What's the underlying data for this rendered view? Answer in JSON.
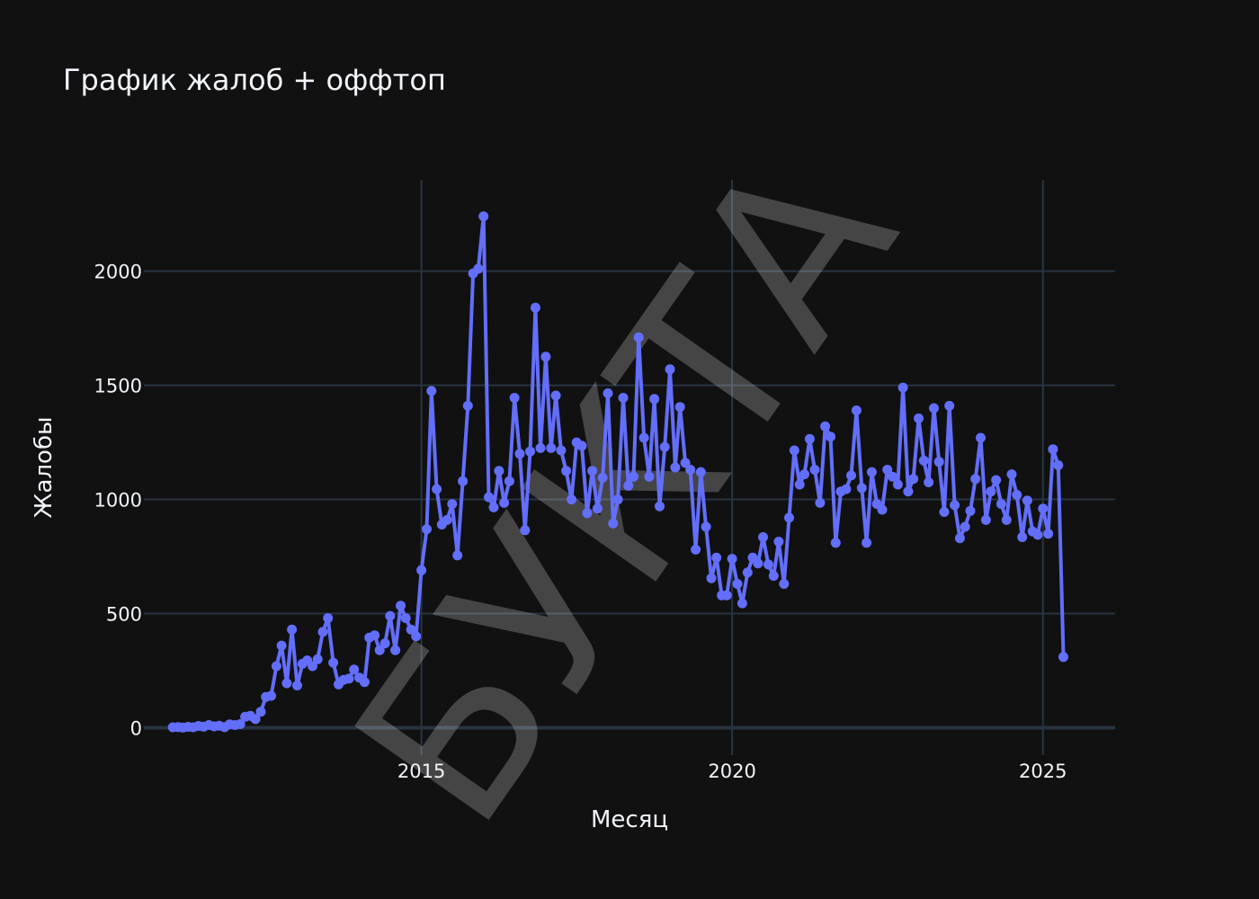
{
  "chart_data": {
    "type": "line",
    "title": "График жалоб + оффтоп",
    "xlabel": "Месяц",
    "ylabel": "Жалобы",
    "watermark": "БУКТА",
    "line_color": "#636efa",
    "background": "#111111",
    "grid": true,
    "xlim": [
      "2010-07-15",
      "2026-03-01"
    ],
    "ylim": [
      -120,
      2400
    ],
    "x_ticks": [
      "2015",
      "2020",
      "2025"
    ],
    "y_ticks": [
      "0",
      "500",
      "1000",
      "1500",
      "2000"
    ],
    "series": [
      {
        "x": [
          "2011-01",
          "2011-02",
          "2011-03",
          "2011-04",
          "2011-05",
          "2011-06",
          "2011-07",
          "2011-08",
          "2011-09",
          "2011-10",
          "2011-11",
          "2011-12",
          "2012-01",
          "2012-02",
          "2012-03",
          "2012-04",
          "2012-05",
          "2012-06",
          "2012-07",
          "2012-08",
          "2012-09",
          "2012-10",
          "2012-11",
          "2012-12",
          "2013-01",
          "2013-02",
          "2013-03",
          "2013-04",
          "2013-05",
          "2013-06",
          "2013-07",
          "2013-08",
          "2013-09",
          "2013-10",
          "2013-11",
          "2013-12",
          "2014-01",
          "2014-02",
          "2014-03",
          "2014-04",
          "2014-05",
          "2014-06",
          "2014-07",
          "2014-08",
          "2014-09",
          "2014-10",
          "2014-11",
          "2014-12",
          "2015-01",
          "2015-02",
          "2015-03",
          "2015-04",
          "2015-05",
          "2015-06",
          "2015-07",
          "2015-08",
          "2015-09",
          "2015-10",
          "2015-11",
          "2015-12",
          "2016-01",
          "2016-02",
          "2016-03",
          "2016-04",
          "2016-05",
          "2016-06",
          "2016-07",
          "2016-08",
          "2016-09",
          "2016-10",
          "2016-11",
          "2016-12",
          "2017-01",
          "2017-02",
          "2017-03",
          "2017-04",
          "2017-05",
          "2017-06",
          "2017-07",
          "2017-08",
          "2017-09",
          "2017-10",
          "2017-11",
          "2017-12",
          "2018-01",
          "2018-02",
          "2018-03",
          "2018-04",
          "2018-05",
          "2018-06",
          "2018-07",
          "2018-08",
          "2018-09",
          "2018-10",
          "2018-11",
          "2018-12",
          "2019-01",
          "2019-02",
          "2019-03",
          "2019-04",
          "2019-05",
          "2019-06",
          "2019-07",
          "2019-08",
          "2019-09",
          "2019-10",
          "2019-11",
          "2019-12",
          "2020-01",
          "2020-02",
          "2020-03",
          "2020-04",
          "2020-05",
          "2020-06",
          "2020-07",
          "2020-08",
          "2020-09",
          "2020-10",
          "2020-11",
          "2020-12",
          "2021-01",
          "2021-02",
          "2021-03",
          "2021-04",
          "2021-05",
          "2021-06",
          "2021-07",
          "2021-08",
          "2021-09",
          "2021-10",
          "2021-11",
          "2021-12",
          "2022-01",
          "2022-02",
          "2022-03",
          "2022-04",
          "2022-05",
          "2022-06",
          "2022-07",
          "2022-08",
          "2022-09",
          "2022-10",
          "2022-11",
          "2022-12",
          "2023-01",
          "2023-02",
          "2023-03",
          "2023-04",
          "2023-05",
          "2023-06",
          "2023-07",
          "2023-08",
          "2023-09",
          "2023-10",
          "2023-11",
          "2023-12",
          "2024-01",
          "2024-02",
          "2024-03",
          "2024-04",
          "2024-05",
          "2024-06",
          "2024-07",
          "2024-08",
          "2024-09",
          "2024-10",
          "2024-11",
          "2024-12",
          "2025-01",
          "2025-02",
          "2025-03",
          "2025-04",
          "2025-05"
        ],
        "y": [
          2,
          3,
          1,
          4,
          2,
          8,
          5,
          12,
          6,
          9,
          3,
          15,
          12,
          16,
          48,
          52,
          38,
          70,
          135,
          140,
          270,
          360,
          195,
          430,
          185,
          280,
          295,
          270,
          300,
          420,
          480,
          285,
          190,
          210,
          215,
          255,
          220,
          200,
          395,
          405,
          340,
          370,
          490,
          340,
          535,
          480,
          430,
          400,
          690,
          870,
          1475,
          1045,
          890,
          910,
          980,
          755,
          1080,
          1410,
          1990,
          2010,
          2240,
          1010,
          965,
          1125,
          985,
          1080,
          1445,
          1200,
          865,
          1210,
          1840,
          1225,
          1625,
          1225,
          1455,
          1215,
          1125,
          1000,
          1250,
          1235,
          940,
          1125,
          960,
          1095,
          1465,
          895,
          1000,
          1445,
          1060,
          1100,
          1710,
          1270,
          1100,
          1440,
          970,
          1230,
          1570,
          1140,
          1405,
          1160,
          1130,
          780,
          1120,
          880,
          655,
          745,
          580,
          580,
          740,
          630,
          545,
          680,
          745,
          720,
          835,
          715,
          665,
          815,
          630,
          920,
          1215,
          1065,
          1110,
          1265,
          1130,
          985,
          1320,
          1275,
          810,
          1035,
          1045,
          1105,
          1390,
          1050,
          810,
          1120,
          980,
          955,
          1130,
          1100,
          1065,
          1490,
          1035,
          1090,
          1355,
          1170,
          1075,
          1400,
          1165,
          945,
          1410,
          975,
          830,
          880,
          950,
          1090,
          1270,
          910,
          1035,
          1085,
          980,
          910,
          1110,
          1020,
          835,
          995,
          860,
          845,
          960,
          850,
          1220,
          1150,
          310
        ]
      }
    ]
  }
}
